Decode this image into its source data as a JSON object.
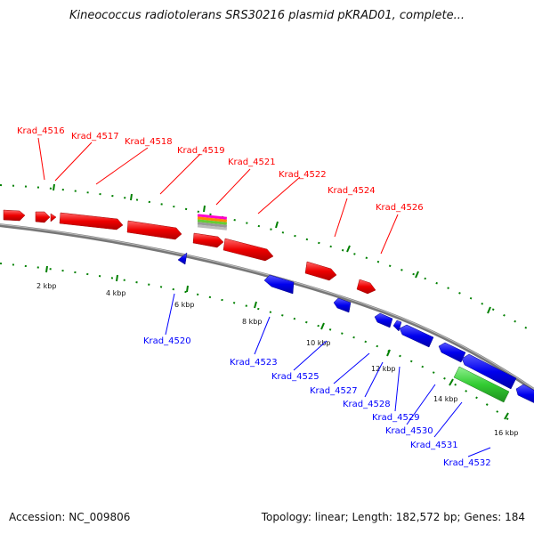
{
  "title": "Kineococcus radiotolerans SRS30216 plasmid pKRAD01, complete...",
  "footer": {
    "accession": "Accession: NC_009806",
    "summary": "Topology: linear; Length: 182,572 bp; Genes: 184"
  },
  "colors": {
    "forward": "#ff0000",
    "reverse": "#0000ff",
    "rna": "#33cc33",
    "tick": "#008000",
    "backbone": "#888888"
  },
  "ticks": [
    "2 kbp",
    "4 kbp",
    "6 kbp",
    "8 kbp",
    "10 kbp",
    "12 kbp",
    "14 kbp",
    "16 kbp"
  ],
  "forward_genes": [
    "Krad_4516",
    "Krad_4517",
    "Krad_4518",
    "Krad_4519",
    "Krad_4521",
    "Krad_4522",
    "Krad_4524",
    "Krad_4526"
  ],
  "reverse_genes": [
    "Krad_4520",
    "Krad_4523",
    "Krad_4525",
    "Krad_4527",
    "Krad_4528",
    "Krad_4529",
    "Krad_4530",
    "Krad_4531",
    "Krad_4532"
  ]
}
